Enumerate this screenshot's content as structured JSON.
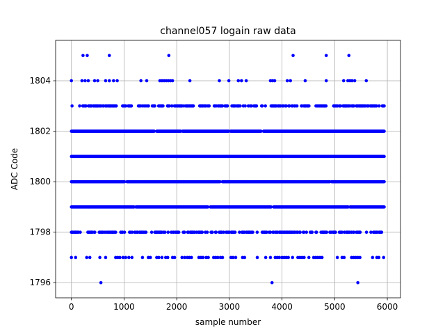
{
  "chart_data": {
    "type": "scatter",
    "title": "channel057 logain raw data",
    "xlabel": "sample number",
    "ylabel": "ADC Code",
    "xlim": [
      -300,
      6250
    ],
    "ylim": [
      1795.4,
      1805.6
    ],
    "xticks": [
      0,
      1000,
      2000,
      3000,
      4000,
      5000,
      6000
    ],
    "yticks": [
      1796,
      1798,
      1800,
      1802,
      1804
    ],
    "grid": true,
    "marker_color": "#0000ff",
    "sample_count": 6000,
    "levels": [
      {
        "y": 1805,
        "density": "sparse",
        "x": [
          220,
          300,
          720,
          1850,
          4210,
          4840,
          5270
        ]
      },
      {
        "y": 1804,
        "density": "sparse",
        "x": [
          0,
          200,
          260,
          320,
          440,
          500,
          650,
          720,
          800,
          870,
          1320,
          1430,
          1680,
          1720,
          1760,
          1800,
          1840,
          1880,
          1920,
          2250,
          2810,
          2990,
          3170,
          3230,
          3320,
          3780,
          3820,
          3860,
          4100,
          4160,
          4440,
          4840,
          5170,
          5250,
          5290,
          5330,
          5380,
          5600
        ]
      },
      {
        "y": 1803,
        "density": "dense",
        "x_start": 0,
        "x_end": 5950,
        "gaps": [
          [
            30,
            110
          ],
          [
            860,
            960
          ],
          [
            1150,
            1260
          ],
          [
            1590,
            1640
          ],
          [
            2330,
            2400
          ],
          [
            2640,
            2700
          ],
          [
            2980,
            3020
          ],
          [
            3550,
            3600
          ],
          [
            3700,
            3760
          ],
          [
            4300,
            4360
          ],
          [
            4860,
            4940
          ],
          [
            5800,
            5840
          ]
        ]
      },
      {
        "y": 1802,
        "density": "full",
        "x_start": 0,
        "x_end": 5950,
        "gaps": [
          [
            1580,
            1610
          ],
          [
            2080,
            2110
          ],
          [
            2990,
            3020
          ],
          [
            3610,
            3640
          ]
        ]
      },
      {
        "y": 1801,
        "density": "full",
        "x_start": 0,
        "x_end": 5950,
        "gaps": []
      },
      {
        "y": 1800,
        "density": "full",
        "x_start": 0,
        "x_end": 5950,
        "gaps": [
          [
            1020,
            1050
          ],
          [
            2830,
            2860
          ],
          [
            4910,
            4940
          ]
        ]
      },
      {
        "y": 1799,
        "density": "full",
        "x_start": 0,
        "x_end": 5950,
        "gaps": [
          [
            1190,
            1220
          ],
          [
            2600,
            2630
          ],
          [
            3800,
            3830
          ],
          [
            5260,
            5290
          ]
        ]
      },
      {
        "y": 1798,
        "density": "dense",
        "x_start": 0,
        "x_end": 5950,
        "gaps": [
          [
            180,
            260
          ],
          [
            450,
            520
          ],
          [
            1020,
            1090
          ],
          [
            1450,
            1520
          ],
          [
            2050,
            2110
          ],
          [
            2590,
            2650
          ],
          [
            3110,
            3180
          ],
          [
            3560,
            3620
          ],
          [
            4580,
            4630
          ],
          [
            5530,
            5590
          ]
        ]
      },
      {
        "y": 1797,
        "density": "sparse",
        "x": [
          0,
          80,
          290,
          350,
          540,
          650,
          840,
          880,
          920,
          980,
          1030,
          1090,
          1150,
          1350,
          1460,
          1500,
          1620,
          1660,
          1720,
          1790,
          1830,
          1920,
          1960,
          2100,
          2150,
          2200,
          2240,
          2280,
          2420,
          2460,
          2500,
          2560,
          2600,
          2700,
          2740,
          2780,
          2830,
          2870,
          3030,
          3070,
          3120,
          3250,
          3290,
          3530,
          3690,
          3780,
          3870,
          3910,
          3950,
          4000,
          4040,
          4080,
          4120,
          4200,
          4300,
          4340,
          4380,
          4420,
          4510,
          4600,
          4640,
          4680,
          4720,
          4760,
          5050,
          5140,
          5180,
          5320,
          5360,
          5400,
          5440,
          5480,
          5720,
          5800,
          5840,
          5930
        ]
      },
      {
        "y": 1796,
        "density": "sparse",
        "x": [
          560,
          3810,
          5440
        ]
      }
    ]
  }
}
